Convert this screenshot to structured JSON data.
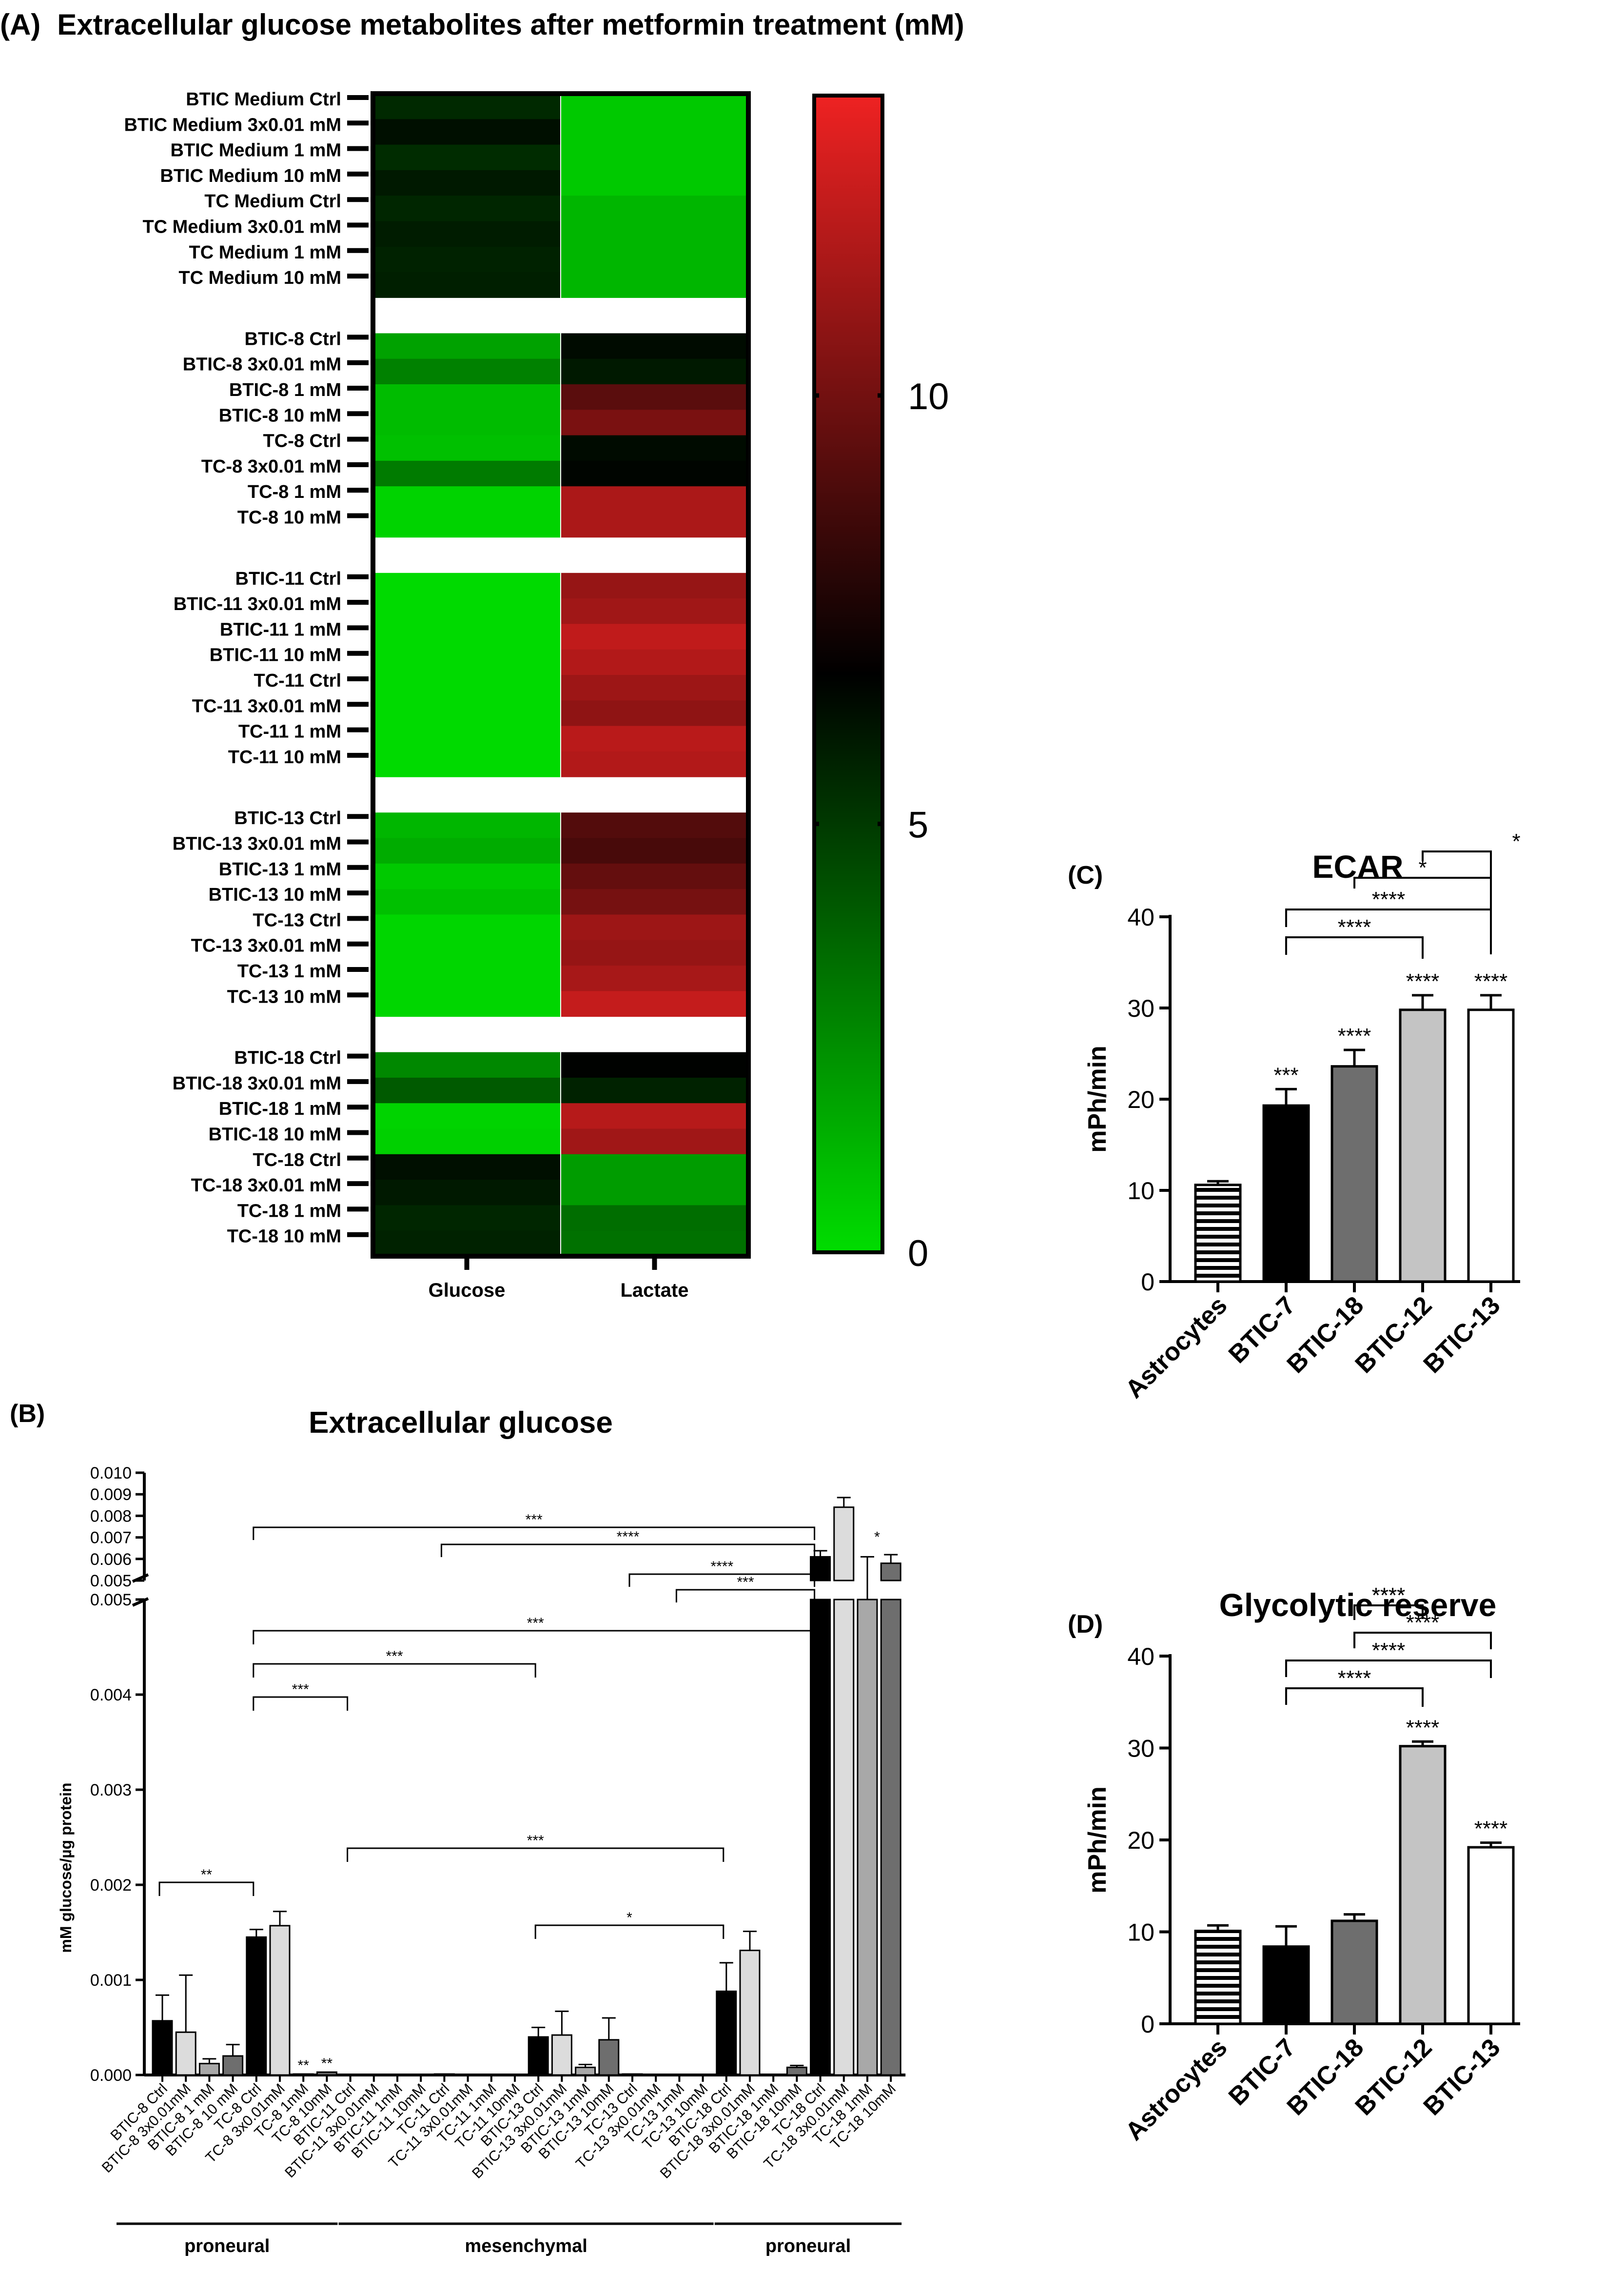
{
  "figure": {
    "panels": {
      "A": {
        "label": "(A)",
        "title": "Extracellular glucose metabolites after metformin treatment (mM)"
      },
      "B": {
        "label": "(B)",
        "title": "Extracellular glucose"
      },
      "C": {
        "label": "(C)",
        "title": "ECAR"
      },
      "D": {
        "label": "(D)",
        "title": "Glycolytic reserve"
      }
    }
  },
  "chart_data": [
    {
      "id": "A",
      "type": "heatmap",
      "title": "Extracellular glucose metabolites after metformin treatment (mM)",
      "columns": [
        "Glucose",
        "Lactate"
      ],
      "colorbar": {
        "min": 0,
        "max": 13.5,
        "ticks": [
          0,
          5,
          10
        ],
        "colors": [
          "#00dd00",
          "#000000",
          "#ee2222"
        ]
      },
      "groups": [
        {
          "rows": [
            {
              "label": "BTIC Medium Ctrl",
              "values": [
                5.5,
                0.6
              ]
            },
            {
              "label": "BTIC Medium 3x0.01 mM",
              "values": [
                6.3,
                0.6
              ]
            },
            {
              "label": "BTIC Medium 1 mM",
              "values": [
                5.4,
                0.6
              ]
            },
            {
              "label": "BTIC Medium 10 mM",
              "values": [
                6.0,
                0.6
              ]
            },
            {
              "label": "TC Medium Ctrl",
              "values": [
                5.6,
                1.2
              ]
            },
            {
              "label": "TC Medium 3x0.01 mM",
              "values": [
                5.9,
                1.2
              ]
            },
            {
              "label": "TC Medium 1 mM",
              "values": [
                5.7,
                1.2
              ]
            },
            {
              "label": "TC Medium 10 mM",
              "values": [
                5.8,
                1.2
              ]
            }
          ]
        },
        {
          "rows": [
            {
              "label": "BTIC-8 Ctrl",
              "values": [
                1.8,
                6.4
              ]
            },
            {
              "label": "BTIC-8 3x0.01 mM",
              "values": [
                2.8,
                6.0
              ]
            },
            {
              "label": "BTIC-8 1 mM",
              "values": [
                1.0,
                9.3
              ]
            },
            {
              "label": "BTIC-8 10 mM",
              "values": [
                1.0,
                10.2
              ]
            },
            {
              "label": "TC-8 Ctrl",
              "values": [
                0.9,
                6.4
              ]
            },
            {
              "label": "TC-8 3x0.01 mM",
              "values": [
                3.0,
                6.6
              ]
            },
            {
              "label": "TC-8 1 mM",
              "values": [
                0.3,
                11.6
              ]
            },
            {
              "label": "TC-8 10 mM",
              "values": [
                0.3,
                11.6
              ]
            }
          ]
        },
        {
          "rows": [
            {
              "label": "BTIC-11 Ctrl",
              "values": [
                0.1,
                11.0
              ]
            },
            {
              "label": "BTIC-11 3x0.01 mM",
              "values": [
                0.1,
                11.3
              ]
            },
            {
              "label": "BTIC-11 1 mM",
              "values": [
                0.1,
                12.2
              ]
            },
            {
              "label": "BTIC-11 10 mM",
              "values": [
                0.1,
                11.8
              ]
            },
            {
              "label": "TC-11 Ctrl",
              "values": [
                0.1,
                11.2
              ]
            },
            {
              "label": "TC-11 3x0.01 mM",
              "values": [
                0.1,
                10.8
              ]
            },
            {
              "label": "TC-11 1 mM",
              "values": [
                0.1,
                12.0
              ]
            },
            {
              "label": "TC-11 10 mM",
              "values": [
                0.1,
                11.8
              ]
            }
          ]
        },
        {
          "rows": [
            {
              "label": "BTIC-13 Ctrl",
              "values": [
                1.2,
                9.1
              ]
            },
            {
              "label": "BTIC-13 3x0.01 mM",
              "values": [
                1.5,
                8.8
              ]
            },
            {
              "label": "BTIC-13 1 mM",
              "values": [
                0.6,
                9.6
              ]
            },
            {
              "label": "BTIC-13 10 mM",
              "values": [
                0.9,
                10.1
              ]
            },
            {
              "label": "TC-13 Ctrl",
              "values": [
                0.2,
                11.2
              ]
            },
            {
              "label": "TC-13 3x0.01 mM",
              "values": [
                0.2,
                11.0
              ]
            },
            {
              "label": "TC-13 1 mM",
              "values": [
                0.2,
                11.5
              ]
            },
            {
              "label": "TC-13 10 mM",
              "values": [
                0.2,
                12.3
              ]
            }
          ]
        },
        {
          "rows": [
            {
              "label": "BTIC-18 Ctrl",
              "values": [
                2.6,
                6.7
              ]
            },
            {
              "label": "BTIC-18 3x0.01 mM",
              "values": [
                4.0,
                5.7
              ]
            },
            {
              "label": "BTIC-18 1 mM",
              "values": [
                0.3,
                11.9
              ]
            },
            {
              "label": "BTIC-18 10 mM",
              "values": [
                0.4,
                11.3
              ]
            },
            {
              "label": "TC-18 Ctrl",
              "values": [
                6.3,
                2.0
              ]
            },
            {
              "label": "TC-18 3x0.01 mM",
              "values": [
                6.0,
                2.0
              ]
            },
            {
              "label": "TC-18 1 mM",
              "values": [
                5.6,
                3.4
              ]
            },
            {
              "label": "TC-18 10 mM",
              "values": [
                5.7,
                3.3
              ]
            }
          ]
        }
      ]
    },
    {
      "id": "B",
      "type": "bar",
      "title": "Extracellular glucose",
      "ylabel": "mM glucose/µg protein",
      "ylim_lower": [
        0,
        0.005
      ],
      "ylim_upper": [
        0.005,
        0.01
      ],
      "yticks_lower": [
        "0.000",
        "0.001",
        "0.002",
        "0.003",
        "0.004",
        "0.005"
      ],
      "yticks_upper": [
        "0.005",
        "0.006",
        "0.007",
        "0.008",
        "0.009",
        "0.010"
      ],
      "categories": [
        "BTIC-8 Ctrl",
        "BTIC-8 3x0.01mM",
        "BTIC-8 1 mM",
        "BTIC-8 10 mM",
        "TC-8 Ctrl",
        "TC-8 3x0.01mM",
        "TC-8 1mM",
        "TC-8 10mM",
        "BTIC-11 Ctrl",
        "BTIC-11 3x0.01mM",
        "BTIC-11 1mM",
        "BTIC-11 10mM",
        "TC-11 Ctrl",
        "TC-11 3x0.01mM",
        "TC-11 1mM",
        "TC-11 10mM",
        "BTIC-13 Ctrl",
        "BTIC-13 3x0.01mM",
        "BTIC-13 1mM",
        "BTIC-13 10mM",
        "TC-13 Ctrl",
        "TC-13 3x0.01mM",
        "TC-13 1mM",
        "TC-13 10mM",
        "BTIC-18 Ctrl",
        "BTIC-18 3x0.01mM",
        "BTIC-18 1mM",
        "BTIC-18 10mM",
        "TC-18 Ctrl",
        "TC-18 3x0.01mM",
        "TC-18 1mM",
        "TC-18 10mM"
      ],
      "values": [
        0.00057,
        0.00045,
        0.00012,
        0.0002,
        0.00145,
        0.00157,
        1e-05,
        3e-05,
        0,
        0,
        0,
        0,
        1e-05,
        0,
        0,
        0,
        0.0004,
        0.00042,
        8e-05,
        0.00037,
        1e-05,
        0,
        0,
        0,
        0.00088,
        0.00131,
        0,
        8e-05,
        0.0061,
        0.0084,
        0.005,
        0.0058
      ],
      "errors": [
        0.00027,
        0.0006,
        5e-05,
        0.00012,
        8e-05,
        0.00015,
        0,
        0,
        0,
        0,
        0,
        0,
        0,
        0,
        0,
        0,
        0.0001,
        0.00025,
        3e-05,
        0.00023,
        0,
        0,
        0,
        0,
        0.0003,
        0.0002,
        0,
        2e-05,
        0.00028,
        0.00045,
        0.0011,
        0.0004
      ],
      "bar_labels": [
        {
          "index": 6,
          "text": "**"
        },
        {
          "index": 7,
          "text": "**"
        },
        {
          "index": 30,
          "text": "*"
        }
      ],
      "significance": [
        {
          "from": 0,
          "to": 4,
          "label": "**"
        },
        {
          "from": 4,
          "to": 8,
          "label": "***"
        },
        {
          "from": 4,
          "to": 16,
          "label": "***"
        },
        {
          "from": 4,
          "to": 28,
          "label": "***"
        },
        {
          "from": 8,
          "to": 24,
          "label": "***"
        },
        {
          "from": 16,
          "to": 24,
          "label": "*"
        },
        {
          "from": 4,
          "to": 28,
          "label": "***",
          "axis": "upper"
        },
        {
          "from": 12,
          "to": 28,
          "label": "****",
          "axis": "upper"
        },
        {
          "from": 20,
          "to": 28,
          "label": "****",
          "axis": "upper"
        },
        {
          "from": 22,
          "to": 28,
          "label": "***",
          "axis": "upper"
        }
      ],
      "groups": [
        {
          "label": "proneural",
          "from": 0,
          "to": 7
        },
        {
          "label": "mesenchymal",
          "from": 8,
          "to": 23
        },
        {
          "label": "proneural",
          "from": 24,
          "to": 31
        }
      ]
    },
    {
      "id": "C",
      "type": "bar",
      "title": "ECAR",
      "ylabel": "mPh/min",
      "ylim": [
        0,
        40
      ],
      "yticks": [
        "0",
        "10",
        "20",
        "30",
        "40"
      ],
      "categories": [
        "Astrocytes",
        "BTIC-7",
        "BTIC-18",
        "BTIC-12",
        "BTIC-13"
      ],
      "values": [
        10.6,
        19.3,
        23.6,
        29.8,
        29.8
      ],
      "errors": [
        0.4,
        1.8,
        1.8,
        1.6,
        1.6
      ],
      "bar_labels": [
        "",
        "***",
        "****",
        "****",
        "****"
      ],
      "significance": [
        {
          "from": 1,
          "to": 3,
          "label": "****"
        },
        {
          "from": 1,
          "to": 4,
          "label": "****"
        },
        {
          "from": 2,
          "to": 4,
          "label": "*"
        },
        {
          "from": 3,
          "to": 4,
          "label": "*"
        }
      ]
    },
    {
      "id": "D",
      "type": "bar",
      "title": "Glycolytic reserve",
      "ylabel": "mPh/min",
      "ylim": [
        0,
        40
      ],
      "yticks": [
        "0",
        "10",
        "20",
        "30",
        "40"
      ],
      "categories": [
        "Astrocytes",
        "BTIC-7",
        "BTIC-18",
        "BTIC-12",
        "BTIC-13"
      ],
      "values": [
        10.1,
        8.4,
        11.2,
        30.2,
        19.2
      ],
      "errors": [
        0.6,
        2.2,
        0.7,
        0.5,
        0.5
      ],
      "bar_labels": [
        "",
        "",
        "",
        "****",
        "****"
      ],
      "significance": [
        {
          "from": 1,
          "to": 3,
          "label": "****"
        },
        {
          "from": 1,
          "to": 4,
          "label": "****"
        },
        {
          "from": 2,
          "to": 4,
          "label": "****"
        },
        {
          "from": 2,
          "to": 3,
          "label": "****"
        },
        {
          "from": 2,
          "to": 3,
          "label": "****"
        }
      ]
    }
  ]
}
